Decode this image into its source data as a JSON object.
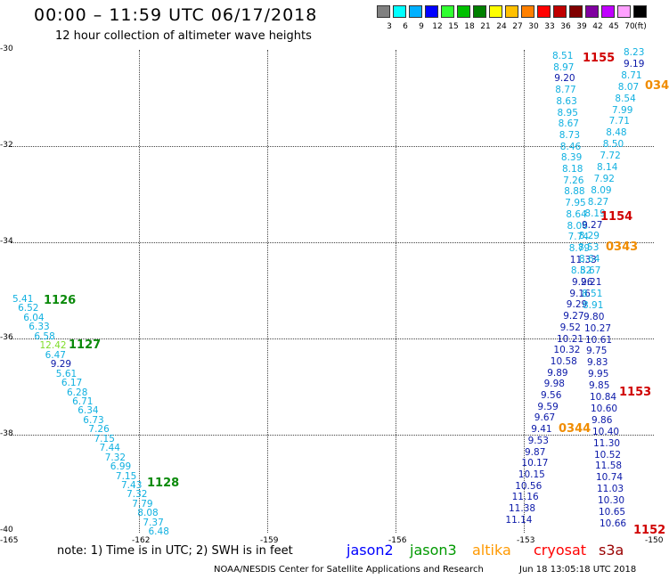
{
  "title": "00:00 – 11:59 UTC 06/17/2018",
  "subtitle": "12 hour collection of altimeter wave heights",
  "legend": {
    "unit": "(ft)",
    "bins": [
      {
        "label": "3",
        "color": "#808080"
      },
      {
        "label": "6",
        "color": "#00ffff"
      },
      {
        "label": "9",
        "color": "#00b0ff"
      },
      {
        "label": "12",
        "color": "#0000ff"
      },
      {
        "label": "15",
        "color": "#30ff30"
      },
      {
        "label": "18",
        "color": "#00c000"
      },
      {
        "label": "21",
        "color": "#008000"
      },
      {
        "label": "24",
        "color": "#ffff00"
      },
      {
        "label": "27",
        "color": "#ffc000"
      },
      {
        "label": "30",
        "color": "#ff8000"
      },
      {
        "label": "33",
        "color": "#ff0000"
      },
      {
        "label": "36",
        "color": "#c00000"
      },
      {
        "label": "39",
        "color": "#800000"
      },
      {
        "label": "42",
        "color": "#8000a0"
      },
      {
        "label": "45",
        "color": "#c000ff"
      },
      {
        "label": "70",
        "color": "#ffa0ff"
      },
      {
        "label": "",
        "color": "#000000"
      }
    ]
  },
  "map": {
    "lat_labels": [
      "-30",
      "-32",
      "-34",
      "-36",
      "-38",
      "-40"
    ],
    "lon_labels": [
      "-165",
      "-162",
      "-159",
      "-156",
      "-153",
      "-150"
    ],
    "lon_range": [
      -165,
      -150
    ],
    "lat_range": [
      -40,
      -30
    ],
    "west_track": {
      "values": [
        "5.41",
        "6.52",
        "6.04",
        "6.33",
        "6.58",
        "12.42",
        "6.47",
        "9.29",
        "5.61",
        "6.17",
        "6.28",
        "6.71",
        "6.34",
        "6.73",
        "7.26",
        "7.15",
        "7.44",
        "7.32",
        "6.99",
        "7.15",
        "7.43",
        "7.32",
        "7.79",
        "8.08",
        "7.37",
        "6.48"
      ],
      "time_labels": [
        {
          "text": "1126",
          "color": "green"
        },
        {
          "text": "1127",
          "color": "green"
        },
        {
          "text": "1128",
          "color": "green"
        }
      ]
    },
    "east_track_a": {
      "values": [
        "8.51",
        "8.97",
        "9.20",
        "8.77",
        "8.63",
        "8.95",
        "8.67",
        "8.73",
        "8.46",
        "8.39",
        "8.18",
        "7.26",
        "8.88",
        "7.95",
        "8.64",
        "8.06",
        "7.74",
        "8.79",
        "11.33",
        "8.52",
        "9.26",
        "9.16",
        "9.29",
        "9.27",
        "9.52",
        "10.21",
        "10.32",
        "10.58",
        "9.89",
        "9.98",
        "9.56",
        "9.59",
        "9.67",
        "9.41",
        "9.53",
        "9.87",
        "10.17",
        "10.15",
        "10.56",
        "11.16",
        "11.38",
        "11.14"
      ]
    },
    "east_track_b": {
      "values": [
        "8.23",
        "9.19",
        "8.71",
        "8.07",
        "8.54",
        "7.99",
        "7.71",
        "8.48",
        "8.50",
        "7.72",
        "8.14",
        "7.92",
        "8.09",
        "8.27",
        "8.19",
        "9.27",
        "8.29",
        "8.53",
        "8.64",
        "8.67",
        "9.21",
        "8.51",
        "8.91",
        "9.80",
        "10.27",
        "10.61",
        "9.75",
        "9.83",
        "9.95",
        "9.85",
        "10.84",
        "10.60",
        "9.86",
        "10.40",
        "11.30",
        "10.52",
        "11.58",
        "10.74",
        "11.03",
        "10.30",
        "10.65",
        "10.66"
      ]
    },
    "time_labels_east": [
      {
        "text": "1155",
        "color": "red"
      },
      {
        "text": "1154",
        "color": "red"
      },
      {
        "text": "0343",
        "color": "orange"
      },
      {
        "text": "1153",
        "color": "red"
      },
      {
        "text": "0344",
        "color": "orange"
      },
      {
        "text": "1152",
        "color": "red"
      },
      {
        "text": "034",
        "color": "orange"
      }
    ]
  },
  "note": "note: 1) Time is in UTC; 2) SWH is in feet",
  "missions": [
    {
      "name": "jason2",
      "color": "#0000ff"
    },
    {
      "name": "jason3",
      "color": "#009900"
    },
    {
      "name": "altika",
      "color": "#ff9900"
    },
    {
      "name": "cryosat",
      "color": "#ff0000"
    },
    {
      "name": "s3a",
      "color": "#990000"
    }
  ],
  "credit": "NOAA/NESDIS Center for Satellite Applications and Research",
  "timestamp": "Jun 18 13:05:18 UTC 2018"
}
